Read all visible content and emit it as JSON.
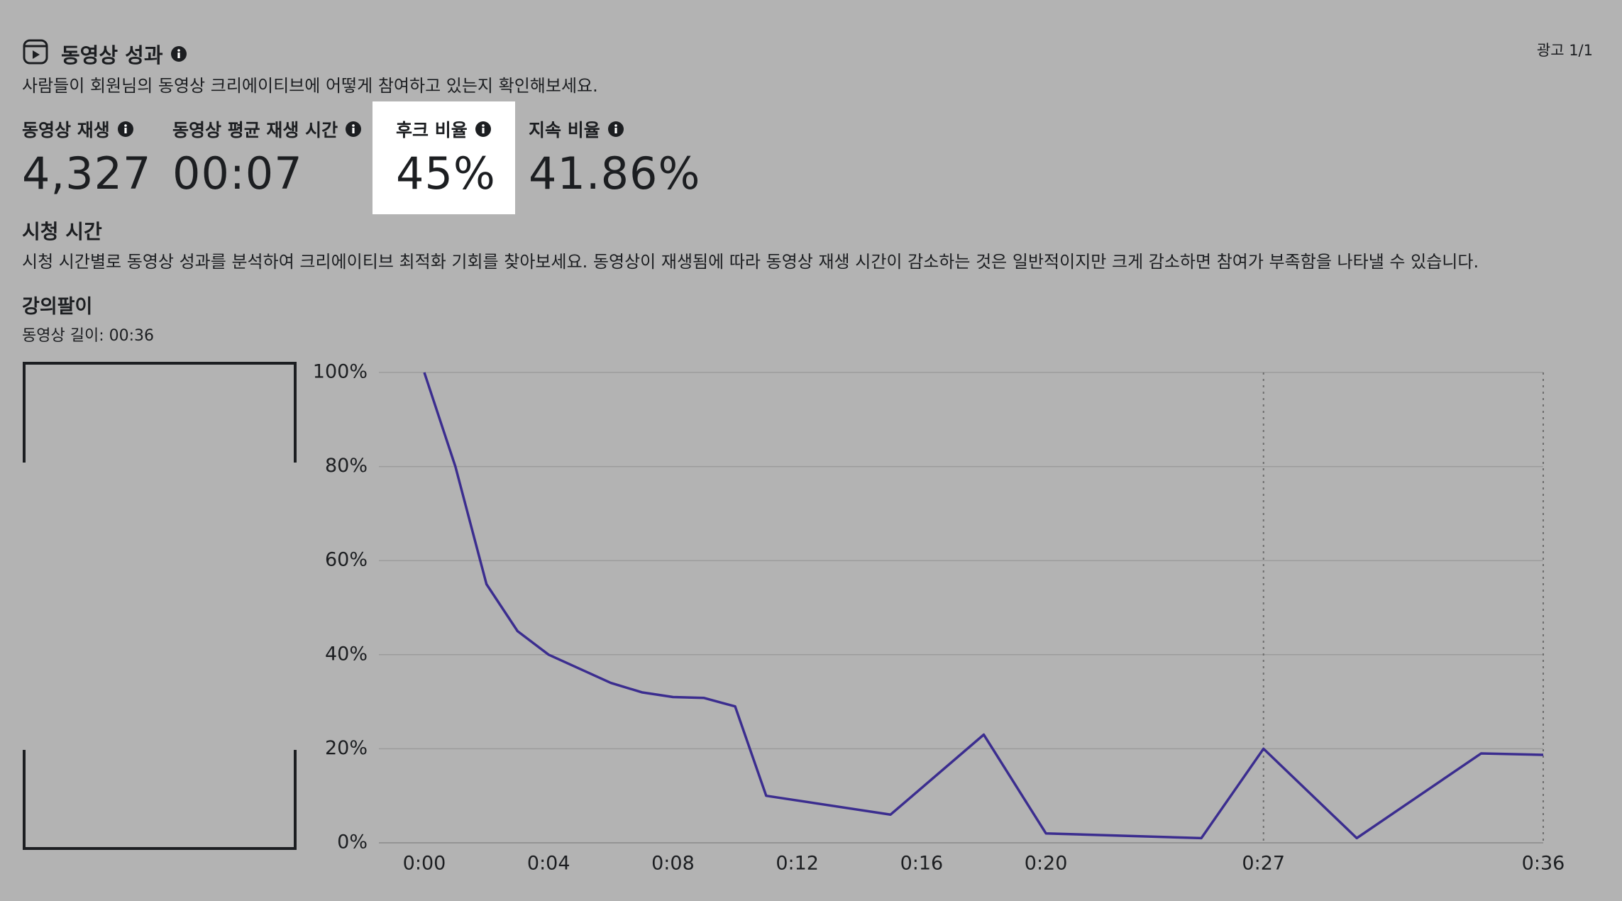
{
  "header": {
    "title": "동영상 성과",
    "subtitle": "사람들이 회원님의 동영상 크리에이티브에 어떻게 참여하고 있는지 확인해보세요.",
    "ad_counter": "광고 1/1"
  },
  "metrics": [
    {
      "label": "동영상 재생",
      "value": "4,327"
    },
    {
      "label": "동영상 평균 재생 시간",
      "value": "00:07"
    },
    {
      "label": "후크 비율",
      "value": "45%"
    },
    {
      "label": "지속 비율",
      "value": "41.86%"
    }
  ],
  "watch_time": {
    "title": "시청 시간",
    "description": "시청 시간별로 동영상 성과를 분석하여 크리에이티브 최적화 기회를 찾아보세요. 동영상이 재생됨에 따라 동영상 재생 시간이 감소하는 것은 일반적이지만 크게 감소하면 참여가 부족함을 나타낼 수 있습니다."
  },
  "ad": {
    "name": "강의팔이",
    "length": "동영상 길이: 00:36"
  },
  "chart_data": {
    "type": "line",
    "x": [
      0,
      1,
      2,
      3,
      4,
      6,
      7,
      8,
      9,
      10,
      11,
      15,
      18,
      20,
      25,
      27,
      30,
      34,
      36
    ],
    "values": [
      100,
      80,
      55,
      45,
      40,
      34,
      32,
      31,
      30.8,
      29,
      10,
      6,
      23,
      2,
      1,
      20,
      1,
      19,
      18.7
    ],
    "color": "#3b2d8f",
    "xlim": [
      0,
      36
    ],
    "xticks": [
      {
        "value": 0,
        "label": "0:00"
      },
      {
        "value": 4,
        "label": "0:04"
      },
      {
        "value": 8,
        "label": "0:08"
      },
      {
        "value": 12,
        "label": "0:12"
      },
      {
        "value": 16,
        "label": "0:16"
      },
      {
        "value": 20,
        "label": "0:20"
      },
      {
        "value": 27,
        "label": "0:27"
      },
      {
        "value": 36,
        "label": "0:36"
      }
    ],
    "ylim": [
      0,
      100
    ],
    "yticks": [
      {
        "value": 0,
        "label": "0%"
      },
      {
        "value": 20,
        "label": "20%"
      },
      {
        "value": 40,
        "label": "40%"
      },
      {
        "value": 60,
        "label": "60%"
      },
      {
        "value": 80,
        "label": "80%"
      },
      {
        "value": 100,
        "label": "100%"
      }
    ],
    "grid": true,
    "vlines": [
      27,
      36
    ]
  }
}
